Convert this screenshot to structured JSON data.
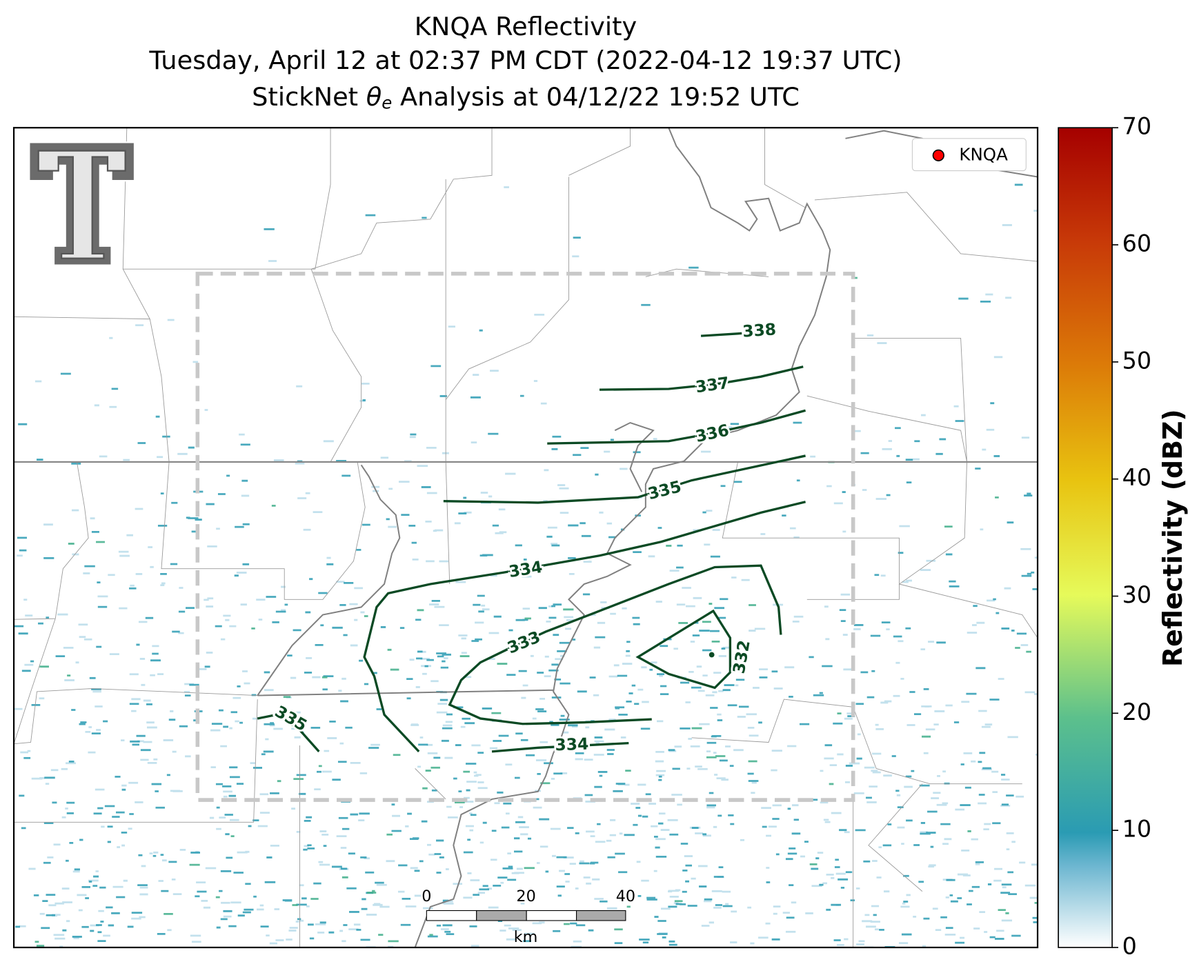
{
  "title": {
    "line1": "KNQA Reflectivity",
    "line2": "Tuesday, April 12 at 02:37 PM CDT (2022-04-12 19:37 UTC)",
    "line3": {
      "before": "StickNet ",
      "symbol": "θ",
      "subscript": "e",
      "after": " Analysis at 04/12/22 19:52 UTC"
    }
  },
  "legend": {
    "label": "KNQA",
    "color": "#ff0000"
  },
  "colorbar": {
    "label": "Reflectivity (dBZ)",
    "lim": [
      0,
      70
    ],
    "ticks": [
      0,
      10,
      20,
      30,
      40,
      50,
      60,
      70
    ]
  },
  "contours": [
    338,
    337,
    336,
    335,
    335,
    334,
    334,
    333,
    332
  ],
  "scalebar": {
    "ticks": [
      0,
      20,
      40
    ],
    "unit": "km"
  }
}
